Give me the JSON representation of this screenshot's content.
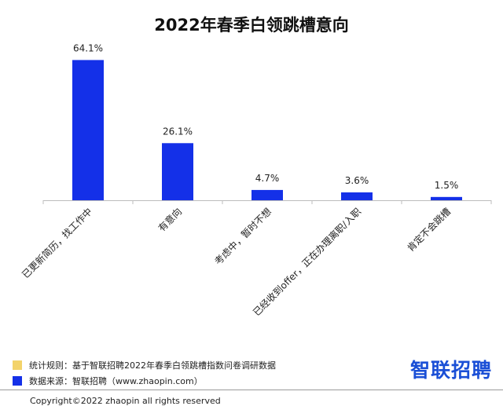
{
  "chart_data": {
    "type": "bar",
    "title": "2022年春季白领跳槽意向",
    "categories": [
      "已更新简历，找工作中",
      "有意向",
      "考虑中，暂时不想",
      "已经收到offer，正在办理离职/入职",
      "肯定不会跳槽"
    ],
    "values": [
      64.1,
      26.1,
      4.7,
      3.6,
      1.5
    ],
    "value_labels": [
      "64.1%",
      "26.1%",
      "4.7%",
      "3.6%",
      "1.5%"
    ],
    "unit": "%",
    "ylim": [
      0,
      70
    ],
    "grid": false,
    "legend": "none",
    "bar_color": "#1430e8"
  },
  "notes": [
    {
      "text": "统计规则：基于智联招聘2022年春季白领跳槽指数问卷调研数据",
      "color": "#f3d36a"
    },
    {
      "text": "数据来源：智联招聘（www.zhaopin.com）",
      "color": "#1430e8"
    }
  ],
  "brand": {
    "text": "智联招聘",
    "color": "#1a4fd6"
  },
  "footer": {
    "copyright": "Copyright©2022 zhaopin all rights reserved"
  }
}
